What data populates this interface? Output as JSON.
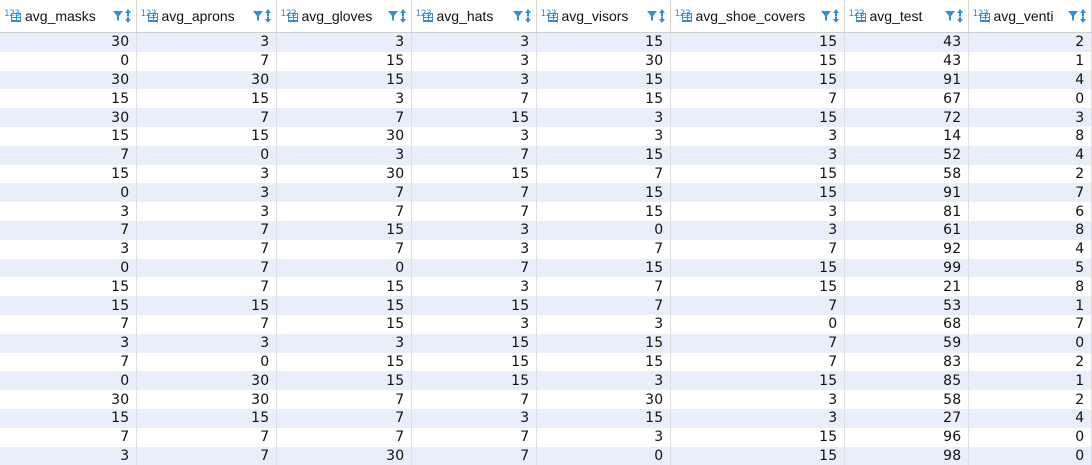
{
  "grid": {
    "columns": [
      {
        "name": "avg_masks",
        "type_badge": "123"
      },
      {
        "name": "avg_aprons",
        "type_badge": "123"
      },
      {
        "name": "avg_gloves",
        "type_badge": "123"
      },
      {
        "name": "avg_hats",
        "type_badge": "123"
      },
      {
        "name": "avg_visors",
        "type_badge": "123"
      },
      {
        "name": "avg_shoe_covers",
        "type_badge": "123"
      },
      {
        "name": "avg_test",
        "type_badge": "123"
      },
      {
        "name": "avg_venti",
        "type_badge": "123"
      }
    ],
    "rows": [
      [
        "30",
        "3",
        "3",
        "3",
        "15",
        "15",
        "43",
        "2"
      ],
      [
        "0",
        "7",
        "15",
        "3",
        "30",
        "15",
        "43",
        "1"
      ],
      [
        "30",
        "30",
        "15",
        "3",
        "15",
        "15",
        "91",
        "4"
      ],
      [
        "15",
        "15",
        "3",
        "7",
        "15",
        "7",
        "67",
        "0"
      ],
      [
        "30",
        "7",
        "7",
        "15",
        "3",
        "15",
        "72",
        "3"
      ],
      [
        "15",
        "15",
        "30",
        "3",
        "3",
        "3",
        "14",
        "8"
      ],
      [
        "7",
        "0",
        "3",
        "7",
        "15",
        "3",
        "52",
        "4"
      ],
      [
        "15",
        "3",
        "30",
        "15",
        "7",
        "15",
        "58",
        "2"
      ],
      [
        "0",
        "3",
        "7",
        "7",
        "15",
        "15",
        "91",
        "7"
      ],
      [
        "3",
        "3",
        "7",
        "7",
        "15",
        "3",
        "81",
        "6"
      ],
      [
        "7",
        "7",
        "15",
        "3",
        "0",
        "3",
        "61",
        "8"
      ],
      [
        "3",
        "7",
        "7",
        "3",
        "7",
        "7",
        "92",
        "4"
      ],
      [
        "0",
        "7",
        "0",
        "7",
        "15",
        "15",
        "99",
        "5"
      ],
      [
        "15",
        "7",
        "15",
        "3",
        "7",
        "15",
        "21",
        "8"
      ],
      [
        "15",
        "15",
        "15",
        "15",
        "7",
        "7",
        "53",
        "1"
      ],
      [
        "7",
        "7",
        "15",
        "3",
        "3",
        "0",
        "68",
        "7"
      ],
      [
        "3",
        "3",
        "3",
        "15",
        "15",
        "7",
        "59",
        "0"
      ],
      [
        "7",
        "0",
        "15",
        "15",
        "15",
        "7",
        "83",
        "2"
      ],
      [
        "0",
        "30",
        "15",
        "15",
        "3",
        "15",
        "85",
        "1"
      ],
      [
        "30",
        "30",
        "7",
        "7",
        "30",
        "3",
        "58",
        "2"
      ],
      [
        "15",
        "15",
        "7",
        "3",
        "15",
        "3",
        "27",
        "4"
      ],
      [
        "7",
        "7",
        "7",
        "7",
        "3",
        "15",
        "96",
        "0"
      ],
      [
        "3",
        "7",
        "30",
        "7",
        "0",
        "15",
        "98",
        "0"
      ]
    ]
  },
  "icons": {
    "type": "numeric-type-icon",
    "filter": "filter-icon",
    "sort": "sort-icon"
  },
  "colors": {
    "accent": "#2f8fd8",
    "row_alt": "#e9eefb",
    "row": "#ffffff",
    "text": "#111111"
  }
}
